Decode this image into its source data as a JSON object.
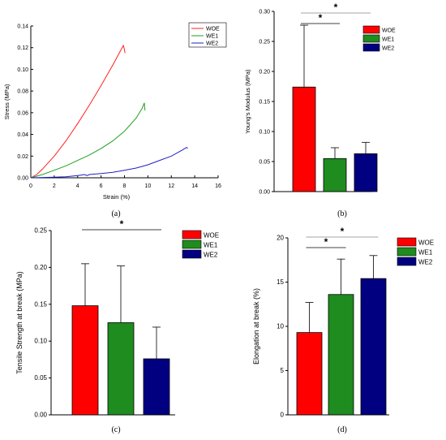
{
  "chart_data": [
    {
      "type": "line",
      "panel_label": "(a)",
      "xlabel": "Strain (%)",
      "ylabel": "Stress (MPa)",
      "xlim": [
        0,
        16
      ],
      "ylim": [
        0,
        0.14
      ],
      "xticks": [
        "0",
        "2",
        "4",
        "6",
        "8",
        "10",
        "12",
        "14",
        "16"
      ],
      "yticks": [
        "0.00",
        "0.02",
        "0.04",
        "0.06",
        "0.08",
        "0.10",
        "0.12",
        "0.14"
      ],
      "legend_position": "top-right",
      "series": [
        {
          "name": "WOE",
          "color": "#ff2020",
          "points": [
            [
              0,
              0
            ],
            [
              0.5,
              0.003
            ],
            [
              1,
              0.008
            ],
            [
              2,
              0.02
            ],
            [
              3,
              0.034
            ],
            [
              4,
              0.05
            ],
            [
              5,
              0.067
            ],
            [
              6,
              0.085
            ],
            [
              7,
              0.104
            ],
            [
              7.6,
              0.116
            ],
            [
              7.9,
              0.122
            ],
            [
              8.0,
              0.118
            ],
            [
              8.05,
              0.115
            ]
          ]
        },
        {
          "name": "WE1",
          "color": "#1fa01f",
          "points": [
            [
              0,
              0
            ],
            [
              1,
              0.003
            ],
            [
              2,
              0.007
            ],
            [
              3,
              0.011
            ],
            [
              4,
              0.016
            ],
            [
              5,
              0.021
            ],
            [
              6,
              0.027
            ],
            [
              7,
              0.034
            ],
            [
              8,
              0.043
            ],
            [
              9,
              0.055
            ],
            [
              9.5,
              0.064
            ],
            [
              9.7,
              0.069
            ],
            [
              9.75,
              0.062
            ]
          ]
        },
        {
          "name": "WE2",
          "color": "#2020c8",
          "points": [
            [
              0,
              0
            ],
            [
              2,
              0.0005
            ],
            [
              3,
              0.001
            ],
            [
              4,
              0.002
            ],
            [
              4.6,
              0.003
            ],
            [
              4.8,
              0.002
            ],
            [
              5,
              0.003
            ],
            [
              6,
              0.004
            ],
            [
              7,
              0.005
            ],
            [
              8,
              0.007
            ],
            [
              9,
              0.009
            ],
            [
              10,
              0.012
            ],
            [
              11,
              0.016
            ],
            [
              12,
              0.02
            ],
            [
              13,
              0.026
            ],
            [
              13.3,
              0.028
            ],
            [
              13.4,
              0.027
            ]
          ]
        }
      ]
    },
    {
      "type": "bar",
      "panel_label": "(b)",
      "ylabel": "Young's Modulus (MPa)",
      "ylim": [
        0,
        0.3
      ],
      "yticks": [
        "0.00",
        "0.05",
        "0.10",
        "0.15",
        "0.20",
        "0.25",
        "0.30"
      ],
      "categories": [
        "WOE",
        "WE1",
        "WE2"
      ],
      "values": [
        0.174,
        0.055,
        0.063
      ],
      "errors": [
        0.103,
        0.018,
        0.019
      ],
      "colors": [
        "#ff0000",
        "#1e8c1e",
        "#000080"
      ],
      "legend_position": "top-right",
      "significance": [
        {
          "from": 0,
          "to": 1,
          "label": "*"
        },
        {
          "from": 0,
          "to": 2,
          "label": "*"
        }
      ]
    },
    {
      "type": "bar",
      "panel_label": "(c)",
      "ylabel": "Tensile Strength at break (MPa)",
      "ylim": [
        0,
        0.25
      ],
      "yticks": [
        "0.00",
        "0.05",
        "0.10",
        "0.15",
        "0.20",
        "0.25"
      ],
      "categories": [
        "WOE",
        "WE1",
        "WE2"
      ],
      "values": [
        0.148,
        0.125,
        0.076
      ],
      "errors": [
        0.057,
        0.077,
        0.043
      ],
      "colors": [
        "#ff0000",
        "#1e8c1e",
        "#000080"
      ],
      "legend_position": "top-right",
      "significance": [
        {
          "from": 0,
          "to": 2,
          "label": "*"
        }
      ]
    },
    {
      "type": "bar",
      "panel_label": "(d)",
      "ylabel": "Elongation at break (%)",
      "ylim": [
        0,
        20
      ],
      "yticks": [
        "0",
        "5",
        "10",
        "15",
        "20"
      ],
      "categories": [
        "WOE",
        "WE1",
        "WE2"
      ],
      "values": [
        9.3,
        13.6,
        15.4
      ],
      "errors": [
        3.4,
        4.0,
        2.6
      ],
      "colors": [
        "#ff0000",
        "#1e8c1e",
        "#000080"
      ],
      "legend_position": "top-right",
      "significance": [
        {
          "from": 0,
          "to": 1,
          "label": "*"
        },
        {
          "from": 0,
          "to": 2,
          "label": "*"
        }
      ]
    }
  ]
}
